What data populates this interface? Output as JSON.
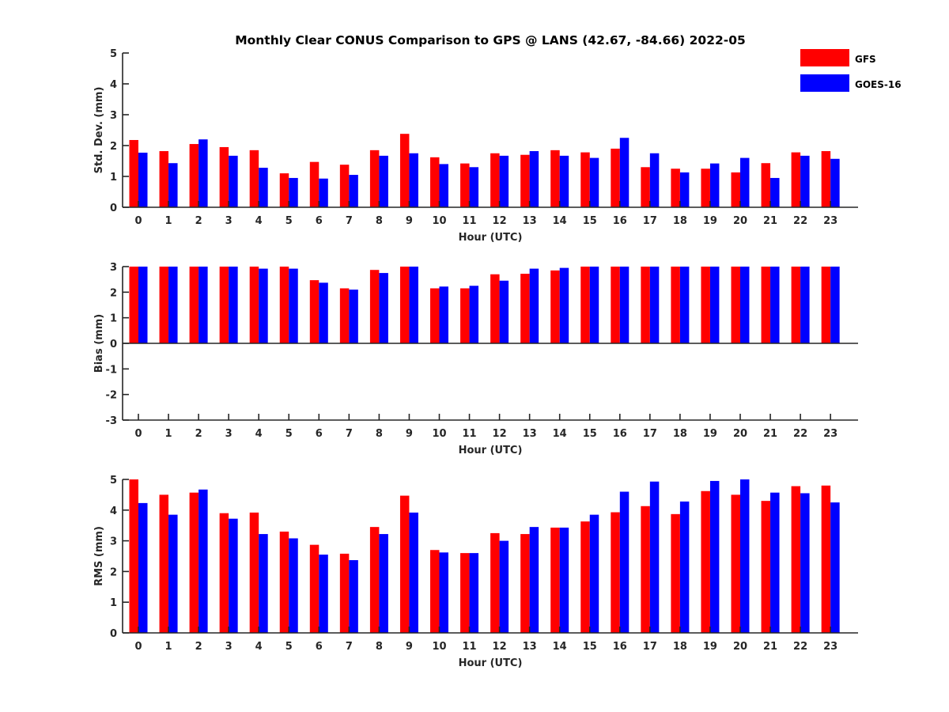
{
  "title": "Monthly Clear CONUS Comparison to GPS @ LANS (42.67, -84.66) 2022-05",
  "colors": {
    "GFS": "#ff0000",
    "GOES-16": "#0000ff"
  },
  "legend": [
    "GFS",
    "GOES-16"
  ],
  "chart_data": [
    {
      "type": "bar",
      "ylabel": "Std. Dev. (mm)",
      "xlabel": "Hour (UTC)",
      "ylim": [
        0,
        5
      ],
      "yticks": [
        0,
        1,
        2,
        3,
        4,
        5
      ],
      "categories": [
        "0",
        "1",
        "2",
        "3",
        "4",
        "5",
        "6",
        "7",
        "8",
        "9",
        "10",
        "11",
        "12",
        "13",
        "14",
        "15",
        "16",
        "17",
        "18",
        "19",
        "20",
        "21",
        "22",
        "23"
      ],
      "series": [
        {
          "name": "GFS",
          "values": [
            2.18,
            1.82,
            2.05,
            1.95,
            1.85,
            1.1,
            1.47,
            1.38,
            1.85,
            2.38,
            1.62,
            1.42,
            1.75,
            1.7,
            1.85,
            1.78,
            1.9,
            1.3,
            1.25,
            1.25,
            1.13,
            1.43,
            1.78,
            1.82
          ]
        },
        {
          "name": "GOES-16",
          "values": [
            1.77,
            1.43,
            2.2,
            1.67,
            1.28,
            0.95,
            0.93,
            1.05,
            1.67,
            1.75,
            1.4,
            1.3,
            1.67,
            1.82,
            1.67,
            1.6,
            2.25,
            1.75,
            1.13,
            1.42,
            1.6,
            0.95,
            1.67,
            1.57
          ]
        }
      ]
    },
    {
      "type": "bar",
      "ylabel": "Bias (mm)",
      "xlabel": "Hour (UTC)",
      "ylim": [
        -3,
        3
      ],
      "yticks": [
        -3,
        -2,
        -1,
        0,
        1,
        2,
        3
      ],
      "categories": [
        "0",
        "1",
        "2",
        "3",
        "4",
        "5",
        "6",
        "7",
        "8",
        "9",
        "10",
        "11",
        "12",
        "13",
        "14",
        "15",
        "16",
        "17",
        "18",
        "19",
        "20",
        "21",
        "22",
        "23"
      ],
      "series": [
        {
          "name": "GFS",
          "values": [
            3.0,
            3.0,
            3.0,
            3.0,
            3.0,
            3.0,
            2.47,
            2.15,
            2.87,
            3.0,
            2.15,
            2.15,
            2.7,
            2.72,
            2.85,
            3.0,
            3.0,
            3.0,
            3.0,
            3.0,
            3.0,
            3.0,
            3.0,
            3.0
          ]
        },
        {
          "name": "GOES-16",
          "values": [
            3.0,
            3.0,
            3.0,
            3.0,
            2.92,
            2.92,
            2.37,
            2.1,
            2.75,
            3.0,
            2.22,
            2.25,
            2.45,
            2.92,
            2.95,
            3.0,
            3.0,
            3.0,
            3.0,
            3.0,
            3.0,
            3.0,
            3.0,
            3.0
          ]
        }
      ]
    },
    {
      "type": "bar",
      "ylabel": "RMS (mm)",
      "xlabel": "Hour (UTC)",
      "ylim": [
        0,
        5
      ],
      "yticks": [
        0,
        1,
        2,
        3,
        4,
        5
      ],
      "categories": [
        "0",
        "1",
        "2",
        "3",
        "4",
        "5",
        "6",
        "7",
        "8",
        "9",
        "10",
        "11",
        "12",
        "13",
        "14",
        "15",
        "16",
        "17",
        "18",
        "19",
        "20",
        "21",
        "22",
        "23"
      ],
      "series": [
        {
          "name": "GFS",
          "values": [
            5.0,
            4.5,
            4.57,
            3.9,
            3.92,
            3.3,
            2.87,
            2.58,
            3.45,
            4.47,
            2.7,
            2.6,
            3.25,
            3.22,
            3.43,
            3.63,
            3.93,
            4.13,
            3.87,
            4.62,
            4.5,
            4.3,
            4.78,
            4.8
          ]
        },
        {
          "name": "GOES-16",
          "values": [
            4.23,
            3.85,
            4.67,
            3.72,
            3.22,
            3.08,
            2.55,
            2.37,
            3.22,
            3.92,
            2.62,
            2.6,
            3.0,
            3.45,
            3.43,
            3.85,
            4.6,
            4.93,
            4.28,
            4.95,
            5.0,
            4.57,
            4.55,
            4.25
          ]
        }
      ]
    }
  ]
}
